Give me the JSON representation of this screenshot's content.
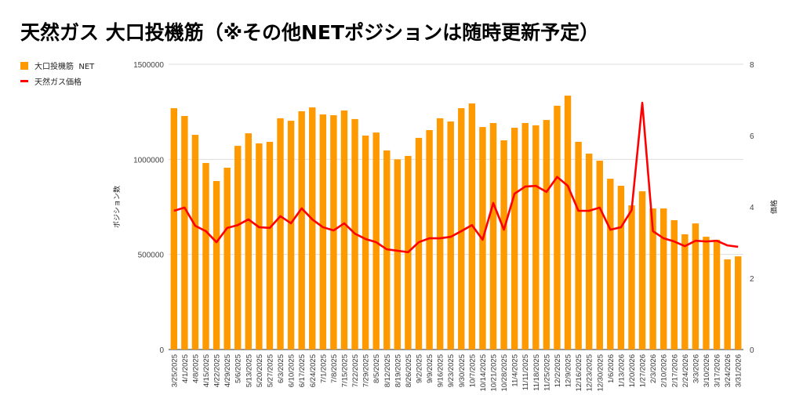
{
  "chart_data": {
    "type": "bar",
    "title": "天然ガス 大口投機筋（※その他NETポジションは随時更新予定）",
    "xlabel": "",
    "ylabel": "ポジション数",
    "y2label": "価格",
    "ylim": [
      0,
      1500000
    ],
    "y2lim": [
      0,
      8
    ],
    "yticks": [
      "0",
      "500000",
      "1000000",
      "1500000"
    ],
    "y2ticks": [
      "0",
      "2",
      "4",
      "6",
      "8"
    ],
    "grid": true,
    "legend_position": "top-left",
    "colors": {
      "bar": "#ff9900",
      "line": "#ff0000"
    },
    "categories": [
      "3/25/2025",
      "4/1/2025",
      "4/8/2025",
      "4/15/2025",
      "4/22/2025",
      "4/29/2025",
      "5/6/2025",
      "5/13/2025",
      "5/20/2025",
      "5/27/2025",
      "6/3/2025",
      "6/10/2025",
      "6/17/2025",
      "6/24/2025",
      "7/1/2025",
      "7/8/2025",
      "7/15/2025",
      "7/22/2025",
      "7/29/2025",
      "8/5/2025",
      "8/12/2025",
      "8/19/2025",
      "8/26/2025",
      "9/2/2025",
      "9/9/2025",
      "9/16/2025",
      "9/23/2025",
      "9/30/2025",
      "10/7/2025",
      "10/14/2025",
      "10/21/2025",
      "10/28/2025",
      "11/4/2025",
      "11/11/2025",
      "11/18/2025",
      "11/25/2025",
      "12/2/2025",
      "12/9/2025",
      "12/16/2025",
      "12/23/2025",
      "12/30/2025",
      "1/6/2026",
      "1/13/2026",
      "1/20/2026",
      "1/27/2026",
      "2/3/2026",
      "2/10/2026",
      "2/17/2026",
      "2/24/2026",
      "3/3/2026",
      "3/10/2026",
      "3/17/2026",
      "3/24/2026",
      "3/31/2026"
    ],
    "series": [
      {
        "name": "大口投機筋  NET",
        "type": "bar",
        "axis": "left",
        "values": [
          1269000,
          1228000,
          1129000,
          981000,
          886000,
          956000,
          1071000,
          1137000,
          1084000,
          1092000,
          1216000,
          1203000,
          1253000,
          1273000,
          1236000,
          1232000,
          1257000,
          1212000,
          1125000,
          1141000,
          1047000,
          1000000,
          1018000,
          1113000,
          1154000,
          1216000,
          1199000,
          1269000,
          1294000,
          1170000,
          1191000,
          1100000,
          1166000,
          1191000,
          1179000,
          1207000,
          1282000,
          1335000,
          1092000,
          1030000,
          993000,
          898000,
          861000,
          758000,
          832000,
          742000,
          742000,
          680000,
          606000,
          663000,
          593000,
          577000,
          474000,
          490000
        ]
      },
      {
        "name": "天然ガス価格",
        "type": "line",
        "axis": "right",
        "values": [
          3.89,
          3.98,
          3.47,
          3.32,
          3.01,
          3.41,
          3.49,
          3.65,
          3.43,
          3.41,
          3.74,
          3.54,
          3.96,
          3.65,
          3.43,
          3.34,
          3.54,
          3.25,
          3.1,
          3.01,
          2.81,
          2.77,
          2.73,
          3.01,
          3.12,
          3.12,
          3.16,
          3.32,
          3.49,
          3.08,
          4.11,
          3.36,
          4.37,
          4.57,
          4.59,
          4.42,
          4.84,
          4.59,
          3.89,
          3.89,
          3.98,
          3.36,
          3.43,
          3.91,
          6.92,
          3.32,
          3.12,
          3.03,
          2.9,
          3.05,
          3.03,
          3.05,
          2.92,
          2.88
        ]
      }
    ]
  }
}
